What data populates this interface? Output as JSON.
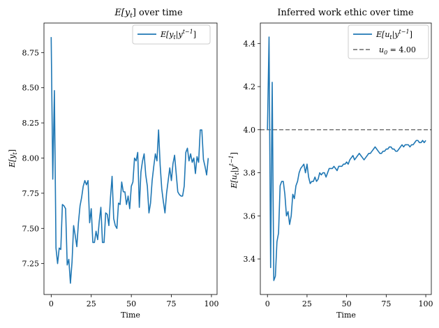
{
  "chart_data": [
    {
      "type": "line",
      "title": "E[y_t] over time",
      "xlabel": "Time",
      "ylabel": "E[y_t]",
      "xlim": [
        -4.5,
        103.5
      ],
      "ylim": [
        7.03,
        8.96
      ],
      "xticks": [
        0,
        25,
        50,
        75,
        100
      ],
      "yticks": [
        7.25,
        7.5,
        7.75,
        8.0,
        8.25,
        8.5,
        8.75
      ],
      "ytick_labels": [
        "7.25",
        "7.50",
        "7.75",
        "8.00",
        "8.25",
        "8.50",
        "8.75"
      ],
      "legend": {
        "position": "top-right",
        "entries": [
          "E[y_t|y^{t-1}]"
        ]
      },
      "series": [
        {
          "name": "E[y_t|y^{t-1}]",
          "color": "#1f77b4",
          "x": [
            0,
            1,
            2,
            3,
            4,
            5,
            6,
            7,
            8,
            9,
            10,
            11,
            12,
            13,
            14,
            15,
            16,
            17,
            18,
            19,
            20,
            21,
            22,
            23,
            24,
            25,
            26,
            27,
            28,
            29,
            30,
            31,
            32,
            33,
            34,
            35,
            36,
            37,
            38,
            39,
            40,
            41,
            42,
            43,
            44,
            45,
            46,
            47,
            48,
            49,
            50,
            51,
            52,
            53,
            54,
            55,
            56,
            57,
            58,
            59,
            60,
            61,
            62,
            63,
            64,
            65,
            66,
            67,
            68,
            69,
            70,
            71,
            72,
            73,
            74,
            75,
            76,
            77,
            78,
            79,
            80,
            81,
            82,
            83,
            84,
            85,
            86,
            87,
            88,
            89,
            90,
            91,
            92,
            93,
            94,
            95,
            96,
            97,
            98
          ],
          "values": [
            8.86,
            7.85,
            8.48,
            7.36,
            7.25,
            7.36,
            7.35,
            7.67,
            7.66,
            7.64,
            7.24,
            7.28,
            7.11,
            7.26,
            7.52,
            7.45,
            7.37,
            7.54,
            7.66,
            7.72,
            7.8,
            7.84,
            7.81,
            7.84,
            7.54,
            7.64,
            7.4,
            7.4,
            7.48,
            7.42,
            7.55,
            7.65,
            7.4,
            7.4,
            7.61,
            7.6,
            7.52,
            7.72,
            7.87,
            7.57,
            7.52,
            7.5,
            7.68,
            7.67,
            7.83,
            7.76,
            7.76,
            7.67,
            7.73,
            7.64,
            7.8,
            7.83,
            8.0,
            7.98,
            8.04,
            7.65,
            7.9,
            7.98,
            8.03,
            7.88,
            7.8,
            7.61,
            7.68,
            7.84,
            7.94,
            8.03,
            7.98,
            8.2,
            7.95,
            7.78,
            7.69,
            7.61,
            7.75,
            7.84,
            7.93,
            7.84,
            7.96,
            8.02,
            7.89,
            7.76,
            7.74,
            7.73,
            7.73,
            7.8,
            8.04,
            8.07,
            7.98,
            8.03,
            7.97,
            8.0,
            7.89,
            8.01,
            7.97,
            8.2,
            8.2,
            7.99,
            7.94,
            7.88,
            8.0
          ]
        }
      ]
    },
    {
      "type": "line",
      "title": "Inferred work ethic over time",
      "xlabel": "Time",
      "ylabel": "E[u_t|y^{t-1}]",
      "xlim": [
        -4.5,
        103.5
      ],
      "ylim": [
        3.235,
        4.495
      ],
      "xticks": [
        0,
        25,
        50,
        75,
        100
      ],
      "yticks": [
        3.4,
        3.6,
        3.8,
        4.0,
        4.2,
        4.4
      ],
      "ytick_labels": [
        "3.4",
        "3.6",
        "3.8",
        "4.0",
        "4.2",
        "4.4"
      ],
      "legend": {
        "position": "top-right",
        "entries": [
          "E[u_t|y^{t-1}]",
          "u_0 = 4.00"
        ]
      },
      "reference_line": {
        "name": "u_0 = 4.00",
        "y": 4.0,
        "color": "#7f7f7f",
        "style": "dashed"
      },
      "series": [
        {
          "name": "E[u_t|y^{t-1}]",
          "color": "#1f77b4",
          "x": [
            0,
            1,
            2,
            3,
            4,
            5,
            6,
            7,
            8,
            9,
            10,
            11,
            12,
            13,
            14,
            15,
            16,
            17,
            18,
            19,
            20,
            21,
            22,
            23,
            24,
            25,
            26,
            27,
            28,
            29,
            30,
            31,
            32,
            33,
            34,
            35,
            36,
            37,
            38,
            39,
            40,
            41,
            42,
            43,
            44,
            45,
            46,
            47,
            48,
            49,
            50,
            51,
            52,
            53,
            54,
            55,
            56,
            57,
            58,
            59,
            60,
            61,
            62,
            63,
            64,
            65,
            66,
            67,
            68,
            69,
            70,
            71,
            72,
            73,
            74,
            75,
            76,
            77,
            78,
            79,
            80,
            81,
            82,
            83,
            84,
            85,
            86,
            87,
            88,
            89,
            90,
            91,
            92,
            93,
            94,
            95,
            96,
            97,
            98,
            99,
            100
          ],
          "values": [
            4.0,
            4.43,
            3.36,
            4.22,
            3.3,
            3.32,
            3.48,
            3.52,
            3.74,
            3.76,
            3.76,
            3.7,
            3.6,
            3.62,
            3.56,
            3.6,
            3.7,
            3.68,
            3.74,
            3.76,
            3.8,
            3.82,
            3.83,
            3.84,
            3.8,
            3.84,
            3.78,
            3.75,
            3.76,
            3.76,
            3.78,
            3.76,
            3.77,
            3.8,
            3.79,
            3.8,
            3.8,
            3.78,
            3.8,
            3.82,
            3.82,
            3.82,
            3.83,
            3.82,
            3.81,
            3.83,
            3.83,
            3.83,
            3.84,
            3.84,
            3.85,
            3.84,
            3.86,
            3.87,
            3.88,
            3.86,
            3.87,
            3.88,
            3.89,
            3.88,
            3.87,
            3.86,
            3.87,
            3.88,
            3.89,
            3.89,
            3.9,
            3.91,
            3.92,
            3.91,
            3.9,
            3.89,
            3.89,
            3.9,
            3.9,
            3.91,
            3.91,
            3.92,
            3.92,
            3.91,
            3.91,
            3.9,
            3.9,
            3.91,
            3.92,
            3.93,
            3.92,
            3.93,
            3.93,
            3.93,
            3.92,
            3.93,
            3.93,
            3.94,
            3.95,
            3.95,
            3.94,
            3.94,
            3.95,
            3.94,
            3.95
          ]
        }
      ]
    }
  ],
  "chart_text": {
    "left": {
      "title_prefix": "E[y",
      "title_sub": "t",
      "title_suffix": "] over time",
      "xlabel": "Time",
      "ylabel_prefix": "E[y",
      "ylabel_sub": "t",
      "ylabel_suffix": "]",
      "legend_prefix": "E[y",
      "legend_sub1": "t",
      "legend_mid": "|y",
      "legend_sup": "t−1",
      "legend_suffix": "]"
    },
    "right": {
      "title": "Inferred work ethic over time",
      "xlabel": "Time",
      "ylabel_prefix": "E[u",
      "ylabel_sub": "t",
      "ylabel_mid": "|y",
      "ylabel_sup": "t−1",
      "ylabel_suffix": "]",
      "legend1_prefix": "E[u",
      "legend1_sub": "t",
      "legend1_mid": "|y",
      "legend1_sup": "t−1",
      "legend1_suffix": "]",
      "legend2_prefix": "u",
      "legend2_sub": "0",
      "legend2_suffix": " = 4.00"
    }
  },
  "colors": {
    "series": "#1f77b4",
    "reference": "#7f7f7f",
    "axes": "#000000",
    "legend_border": "#cccccc"
  }
}
